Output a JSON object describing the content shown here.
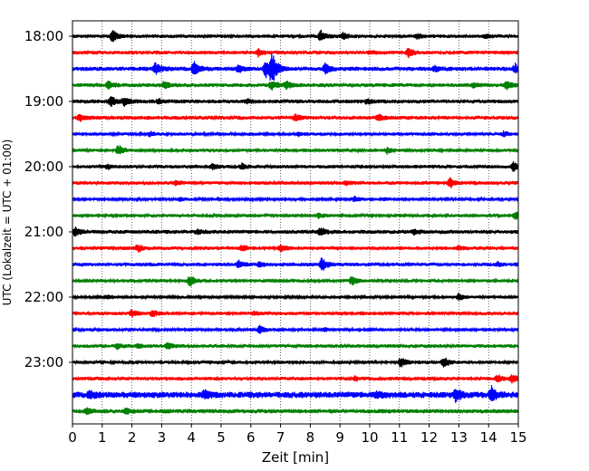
{
  "chart_data": {
    "type": "line",
    "title": "",
    "xlabel": "Zeit  [min]",
    "ylabel": "UTC (Lokalzeit = UTC + 01:00)",
    "xlim": [
      0,
      15
    ],
    "x_ticks": [
      "0",
      "1",
      "2",
      "3",
      "4",
      "5",
      "6",
      "7",
      "8",
      "9",
      "10",
      "11",
      "12",
      "13",
      "14",
      "15"
    ],
    "time_row_interval_minutes": 15,
    "y_tick_labels": [
      {
        "row": 0,
        "label": "18:00"
      },
      {
        "row": 4,
        "label": "19:00"
      },
      {
        "row": 8,
        "label": "20:00"
      },
      {
        "row": 12,
        "label": "21:00"
      },
      {
        "row": 16,
        "label": "22:00"
      },
      {
        "row": 20,
        "label": "23:00"
      }
    ],
    "grid": "vertical dotted at each minute",
    "trace_colors": [
      "#000000",
      "#ff0000",
      "#0000ff",
      "#008000"
    ],
    "rows": [
      {
        "start": "18:00",
        "color": "#000000",
        "noise": 0.18,
        "events": [
          {
            "t": 1.35,
            "amp": 0.65
          },
          {
            "t": 8.35,
            "amp": 0.55
          },
          {
            "t": 9.1,
            "amp": 0.35
          },
          {
            "t": 11.6,
            "amp": 0.25
          },
          {
            "t": 13.9,
            "amp": 0.2
          }
        ]
      },
      {
        "start": "18:15",
        "color": "#ff0000",
        "noise": 0.18,
        "events": [
          {
            "t": 6.25,
            "amp": 0.4
          },
          {
            "t": 11.3,
            "amp": 0.55
          },
          {
            "t": 10.0,
            "amp": 0.2
          }
        ]
      },
      {
        "start": "18:30",
        "color": "#0000ff",
        "noise": 0.22,
        "events": [
          {
            "t": 2.8,
            "amp": 0.6
          },
          {
            "t": 4.1,
            "amp": 0.7
          },
          {
            "t": 5.6,
            "amp": 0.35
          },
          {
            "t": 6.5,
            "amp": 1.0
          },
          {
            "t": 6.72,
            "amp": 1.6
          },
          {
            "t": 8.5,
            "amp": 0.55
          },
          {
            "t": 12.2,
            "amp": 0.3
          },
          {
            "t": 14.9,
            "amp": 0.45
          }
        ]
      },
      {
        "start": "18:45",
        "color": "#008000",
        "noise": 0.2,
        "events": [
          {
            "t": 1.2,
            "amp": 0.35
          },
          {
            "t": 3.1,
            "amp": 0.35
          },
          {
            "t": 6.7,
            "amp": 0.55
          },
          {
            "t": 7.2,
            "amp": 0.4
          },
          {
            "t": 13.5,
            "amp": 0.25
          },
          {
            "t": 14.6,
            "amp": 0.45
          }
        ]
      },
      {
        "start": "19:00",
        "color": "#000000",
        "noise": 0.2,
        "events": [
          {
            "t": 1.3,
            "amp": 0.55
          },
          {
            "t": 1.75,
            "amp": 0.45
          },
          {
            "t": 2.9,
            "amp": 0.25
          },
          {
            "t": 5.9,
            "amp": 0.2
          },
          {
            "t": 9.9,
            "amp": 0.3
          }
        ]
      },
      {
        "start": "19:15",
        "color": "#ff0000",
        "noise": 0.2,
        "events": [
          {
            "t": 0.25,
            "amp": 0.4
          },
          {
            "t": 7.5,
            "amp": 0.3
          },
          {
            "t": 10.3,
            "amp": 0.35
          }
        ]
      },
      {
        "start": "19:30",
        "color": "#0000ff",
        "noise": 0.16,
        "events": [
          {
            "t": 2.6,
            "amp": 0.25
          },
          {
            "t": 7.6,
            "amp": 0.2
          },
          {
            "t": 14.5,
            "amp": 0.25
          }
        ]
      },
      {
        "start": "19:45",
        "color": "#008000",
        "noise": 0.16,
        "events": [
          {
            "t": 1.55,
            "amp": 0.6
          },
          {
            "t": 10.6,
            "amp": 0.35
          }
        ]
      },
      {
        "start": "20:00",
        "color": "#000000",
        "noise": 0.18,
        "events": [
          {
            "t": 1.2,
            "amp": 0.2
          },
          {
            "t": 4.7,
            "amp": 0.3
          },
          {
            "t": 5.7,
            "amp": 0.3
          },
          {
            "t": 14.85,
            "amp": 0.55
          }
        ]
      },
      {
        "start": "20:15",
        "color": "#ff0000",
        "noise": 0.18,
        "events": [
          {
            "t": 3.5,
            "amp": 0.25
          },
          {
            "t": 9.2,
            "amp": 0.2
          },
          {
            "t": 12.7,
            "amp": 0.55
          }
        ]
      },
      {
        "start": "20:30",
        "color": "#0000ff",
        "noise": 0.14,
        "events": [
          {
            "t": 3.6,
            "amp": 0.2
          },
          {
            "t": 9.5,
            "amp": 0.3
          },
          {
            "t": 10.5,
            "amp": 0.15
          }
        ]
      },
      {
        "start": "20:45",
        "color": "#008000",
        "noise": 0.16,
        "events": [
          {
            "t": 8.3,
            "amp": 0.25
          },
          {
            "t": 14.9,
            "amp": 0.4
          }
        ]
      },
      {
        "start": "21:00",
        "color": "#000000",
        "noise": 0.2,
        "events": [
          {
            "t": 0.1,
            "amp": 0.45
          },
          {
            "t": 4.2,
            "amp": 0.2
          },
          {
            "t": 8.35,
            "amp": 0.45
          },
          {
            "t": 11.5,
            "amp": 0.25
          }
        ]
      },
      {
        "start": "21:15",
        "color": "#ff0000",
        "noise": 0.18,
        "events": [
          {
            "t": 2.2,
            "amp": 0.35
          },
          {
            "t": 5.7,
            "amp": 0.35
          },
          {
            "t": 7.0,
            "amp": 0.35
          },
          {
            "t": 13.0,
            "amp": 0.2
          }
        ]
      },
      {
        "start": "21:30",
        "color": "#0000ff",
        "noise": 0.18,
        "events": [
          {
            "t": 5.6,
            "amp": 0.4
          },
          {
            "t": 6.3,
            "amp": 0.3
          },
          {
            "t": 8.4,
            "amp": 0.75
          },
          {
            "t": 14.3,
            "amp": 0.2
          }
        ]
      },
      {
        "start": "21:45",
        "color": "#008000",
        "noise": 0.16,
        "events": [
          {
            "t": 3.95,
            "amp": 0.6
          },
          {
            "t": 9.4,
            "amp": 0.45
          }
        ]
      },
      {
        "start": "22:00",
        "color": "#000000",
        "noise": 0.15,
        "events": [
          {
            "t": 1.2,
            "amp": 0.2
          },
          {
            "t": 13.0,
            "amp": 0.35
          }
        ]
      },
      {
        "start": "22:15",
        "color": "#ff0000",
        "noise": 0.18,
        "events": [
          {
            "t": 2.0,
            "amp": 0.35
          },
          {
            "t": 2.7,
            "amp": 0.3
          },
          {
            "t": 6.1,
            "amp": 0.2
          }
        ]
      },
      {
        "start": "22:30",
        "color": "#0000ff",
        "noise": 0.15,
        "events": [
          {
            "t": 6.3,
            "amp": 0.45
          },
          {
            "t": 8.5,
            "amp": 0.2
          }
        ]
      },
      {
        "start": "22:45",
        "color": "#008000",
        "noise": 0.18,
        "events": [
          {
            "t": 1.5,
            "amp": 0.3
          },
          {
            "t": 3.2,
            "amp": 0.35
          },
          {
            "t": 2.2,
            "amp": 0.2
          }
        ]
      },
      {
        "start": "23:00",
        "color": "#000000",
        "noise": 0.16,
        "events": [
          {
            "t": 11.05,
            "amp": 0.6
          },
          {
            "t": 12.5,
            "amp": 0.6
          }
        ]
      },
      {
        "start": "23:15",
        "color": "#ff0000",
        "noise": 0.18,
        "events": [
          {
            "t": 9.5,
            "amp": 0.2
          },
          {
            "t": 14.3,
            "amp": 0.45
          },
          {
            "t": 14.8,
            "amp": 0.45
          }
        ]
      },
      {
        "start": "23:30",
        "color": "#0000ff",
        "noise": 0.32,
        "events": [
          {
            "t": 0.6,
            "amp": 0.35
          },
          {
            "t": 4.45,
            "amp": 0.45
          },
          {
            "t": 10.2,
            "amp": 0.35
          },
          {
            "t": 12.9,
            "amp": 0.7
          },
          {
            "t": 14.1,
            "amp": 0.75
          }
        ]
      },
      {
        "start": "23:45",
        "color": "#008000",
        "noise": 0.22,
        "events": [
          {
            "t": 0.5,
            "amp": 0.3
          },
          {
            "t": 1.8,
            "amp": 0.25
          }
        ]
      }
    ]
  }
}
